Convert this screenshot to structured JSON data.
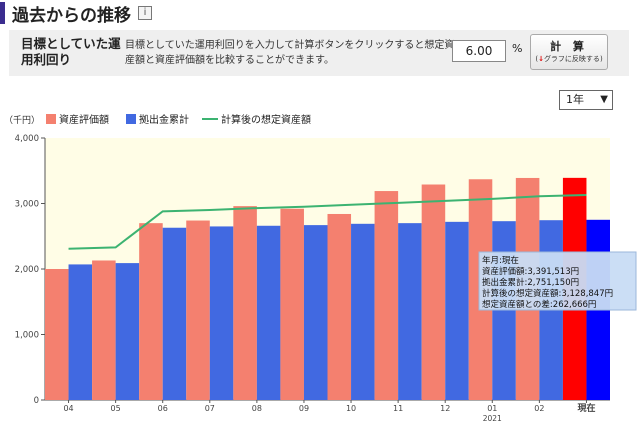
{
  "page": {
    "title": "過去からの推移",
    "info_icon": "i"
  },
  "calc_panel": {
    "label": "目標としていた運用利回り",
    "description": "目標としていた運用利回りを入力して計算ボタンをクリックすると想定資産額と資産評価額を比較することができます。",
    "rate_value": "6.00",
    "rate_unit": "%",
    "calc_button_label": "計 算",
    "calc_button_sub": "グラフに反映する",
    "calc_button_sub_arrow": "↓"
  },
  "period_select": {
    "value": "1年",
    "icon": "chevron-down-icon"
  },
  "colors": {
    "eval": "#f4806f",
    "cumulative": "#4169e1",
    "expected": "#3cb371",
    "eval_current": "#ff0000",
    "cumulative_current": "#0000ff",
    "plot_bg": "#fffde6",
    "tooltip_bg": "#c8dcf4"
  },
  "chart_data": {
    "type": "bar",
    "unit_label": "（千円）",
    "categories": [
      "04",
      "05",
      "06",
      "07",
      "08",
      "09",
      "10",
      "11",
      "12",
      "01",
      "02",
      "現在"
    ],
    "year_label": "2021",
    "year_label_under": "01",
    "series": [
      {
        "name": "資産評価額",
        "type": "bar",
        "values": [
          2000,
          2130,
          2700,
          2740,
          2960,
          2920,
          2840,
          3190,
          3290,
          3370,
          3390,
          3391.513
        ]
      },
      {
        "name": "拠出金累計",
        "type": "bar",
        "values": [
          2070,
          2090,
          2630,
          2650,
          2660,
          2670,
          2690,
          2700,
          2720,
          2730,
          2745,
          2751.15
        ]
      },
      {
        "name": "計算後の想定資産額",
        "type": "line",
        "values": [
          2310,
          2330,
          2880,
          2900,
          2930,
          2950,
          2980,
          3010,
          3040,
          3070,
          3110,
          3128.847
        ]
      }
    ],
    "ylim": [
      0,
      4000
    ],
    "yticks": [
      "0",
      "1,000",
      "2,000",
      "3,000",
      "4,000"
    ],
    "grid": false,
    "legend_position": "top",
    "tooltip": {
      "lines": [
        "年月:現在",
        "資産評価額:3,391,513円",
        "拠出金累計:2,751,150円",
        "計算後の想定資産額:3,128,847円",
        "想定資産額との差:262,666円"
      ]
    }
  }
}
